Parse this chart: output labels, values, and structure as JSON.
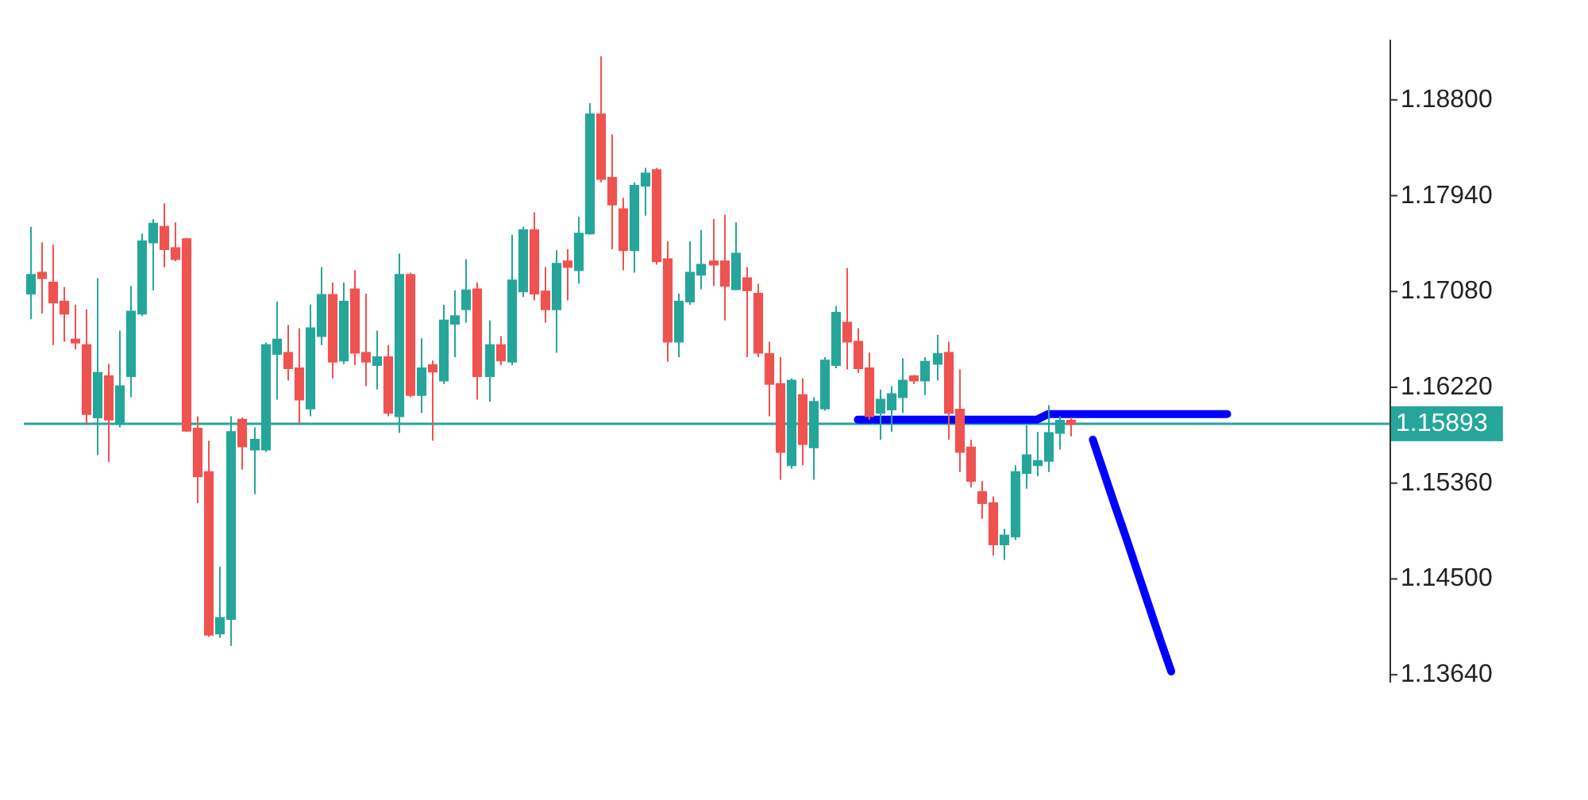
{
  "chart_data": {
    "type": "candlestick",
    "categories": [
      null,
      null,
      null,
      null,
      null,
      null,
      null,
      null,
      null,
      null,
      null,
      null,
      null,
      null,
      null,
      null,
      null,
      null,
      null,
      null,
      null,
      null,
      null,
      null,
      null,
      null,
      null,
      null,
      null,
      null,
      null,
      null,
      null,
      null,
      null,
      null,
      null,
      null,
      null,
      null,
      null,
      null,
      null,
      null,
      null,
      null,
      null,
      null,
      null,
      null,
      null,
      null,
      null,
      null,
      null,
      null,
      null,
      null,
      null,
      null,
      null,
      null,
      null,
      null,
      null,
      null,
      null,
      null,
      null,
      null,
      null,
      null,
      null,
      null,
      null,
      null,
      null,
      null,
      null,
      null,
      null,
      null,
      null,
      null,
      null,
      null,
      null,
      null,
      null,
      null,
      null,
      null,
      null,
      null,
      null,
      null,
      null,
      null,
      null,
      null,
      null,
      null,
      null,
      null,
      null,
      null,
      null,
      null,
      null,
      null,
      null,
      null,
      null,
      null,
      null,
      null,
      null,
      null,
      null,
      null,
      null,
      null
    ],
    "ohlc": [
      [
        1.1706,
        1.1766,
        1.1683,
        1.1723
      ],
      [
        1.1725,
        1.1752,
        1.1688,
        1.172
      ],
      [
        1.1716,
        1.175,
        1.166,
        1.1698
      ],
      [
        1.1699,
        1.1712,
        1.1663,
        1.1688
      ],
      [
        1.1665,
        1.1696,
        1.1656,
        1.1662
      ],
      [
        1.166,
        1.1692,
        1.1589,
        1.1598
      ],
      [
        1.1595,
        1.172,
        1.1561,
        1.1635
      ],
      [
        1.1632,
        1.1643,
        1.1555,
        1.1593
      ],
      [
        1.1589,
        1.1673,
        1.1586,
        1.1623
      ],
      [
        1.1632,
        1.1713,
        1.1613,
        1.169
      ],
      [
        1.1688,
        1.176,
        1.1686,
        1.1753
      ],
      [
        1.1752,
        1.1773,
        1.1709,
        1.1769
      ],
      [
        1.1766,
        1.1787,
        1.173,
        1.1746
      ],
      [
        1.1747,
        1.177,
        1.1735,
        1.1737
      ],
      [
        1.1755,
        1.1756,
        1.1582,
        1.1583
      ],
      [
        1.1585,
        1.1596,
        1.1518,
        1.1542
      ],
      [
        1.1546,
        1.1574,
        1.1398,
        1.14
      ],
      [
        1.1401,
        1.1461,
        1.1397,
        1.1415
      ],
      [
        1.1414,
        1.1596,
        1.139,
        1.1582
      ],
      [
        1.1593,
        1.1595,
        1.1548,
        1.1569
      ],
      [
        1.1566,
        1.1586,
        1.1526,
        1.1575
      ],
      [
        1.1566,
        1.1662,
        1.1564,
        1.166
      ],
      [
        1.1652,
        1.1699,
        1.1611,
        1.1665
      ],
      [
        1.1653,
        1.1678,
        1.1628,
        1.1639
      ],
      [
        1.1639,
        1.1675,
        1.1589,
        1.1611
      ],
      [
        1.1603,
        1.1696,
        1.1596,
        1.1675
      ],
      [
        1.1668,
        1.173,
        1.166,
        1.1705
      ],
      [
        1.1705,
        1.1716,
        1.163,
        1.1645
      ],
      [
        1.1646,
        1.1716,
        1.1643,
        1.1699
      ],
      [
        1.171,
        1.1727,
        1.1642,
        1.1653
      ],
      [
        1.1653,
        1.1706,
        1.1623,
        1.1645
      ],
      [
        1.1642,
        1.1673,
        1.162,
        1.1649
      ],
      [
        1.1649,
        1.166,
        1.1596,
        1.1599
      ],
      [
        1.1596,
        1.1742,
        1.1581,
        1.1723
      ],
      [
        1.1723,
        1.1725,
        1.1613,
        1.1615
      ],
      [
        1.1615,
        1.1666,
        1.1599,
        1.1639
      ],
      [
        1.1642,
        1.1646,
        1.1574,
        1.1636
      ],
      [
        1.1628,
        1.1696,
        1.1625,
        1.1682
      ],
      [
        1.1679,
        1.1709,
        1.1649,
        1.1686
      ],
      [
        1.1692,
        1.1737,
        1.168,
        1.1709
      ],
      [
        1.171,
        1.1716,
        1.1611,
        1.1632
      ],
      [
        1.1632,
        1.1682,
        1.1609,
        1.166
      ],
      [
        1.166,
        1.1668,
        1.1642,
        1.1646
      ],
      [
        1.1645,
        1.1759,
        1.1642,
        1.1718
      ],
      [
        1.1708,
        1.1766,
        1.1703,
        1.1763
      ],
      [
        1.1763,
        1.1779,
        1.17,
        1.1706
      ],
      [
        1.1708,
        1.173,
        1.168,
        1.1692
      ],
      [
        1.1692,
        1.1745,
        1.1653,
        1.1733
      ],
      [
        1.1735,
        1.1746,
        1.17,
        1.173
      ],
      [
        1.1727,
        1.1775,
        1.1715,
        1.176
      ],
      [
        1.176,
        1.1877,
        1.1759,
        1.1867
      ],
      [
        1.1867,
        1.1919,
        1.1806,
        1.1809
      ],
      [
        1.181,
        1.1849,
        1.1746,
        1.1786
      ],
      [
        1.1782,
        1.1792,
        1.1727,
        1.1745
      ],
      [
        1.1745,
        1.1806,
        1.1725,
        1.1803
      ],
      [
        1.1803,
        1.1819,
        1.1776,
        1.1814
      ],
      [
        1.1817,
        1.1819,
        1.1732,
        1.1735
      ],
      [
        1.1737,
        1.1753,
        1.1645,
        1.1663
      ],
      [
        1.1663,
        1.1706,
        1.1649,
        1.1699
      ],
      [
        1.1699,
        1.1753,
        1.1696,
        1.1725
      ],
      [
        1.1723,
        1.1763,
        1.171,
        1.1732
      ],
      [
        1.1735,
        1.1773,
        1.1713,
        1.1732
      ],
      [
        1.1735,
        1.1777,
        1.1682,
        1.1713
      ],
      [
        1.171,
        1.177,
        1.1709,
        1.1742
      ],
      [
        1.172,
        1.173,
        1.1649,
        1.1709
      ],
      [
        1.1706,
        1.1715,
        1.1649,
        1.1653
      ],
      [
        1.1652,
        1.1663,
        1.1596,
        1.1625
      ],
      [
        1.1625,
        1.1649,
        1.1539,
        1.1564
      ],
      [
        1.1552,
        1.163,
        1.1549,
        1.1628
      ],
      [
        1.1615,
        1.163,
        1.1552,
        1.1571
      ],
      [
        1.1568,
        1.1613,
        1.1539,
        1.1609
      ],
      [
        1.1603,
        1.1649,
        1.1601,
        1.1646
      ],
      [
        1.1642,
        1.1695,
        1.1639,
        1.1689
      ],
      [
        1.168,
        1.1729,
        1.1638,
        1.1663
      ],
      [
        1.1663,
        1.1675,
        1.1635,
        1.1639
      ],
      [
        1.1639,
        1.1653,
        1.1593,
        1.1596
      ],
      [
        1.1599,
        1.162,
        1.1575,
        1.1611
      ],
      [
        1.1602,
        1.1623,
        1.1582,
        1.1616
      ],
      [
        1.1613,
        1.1648,
        1.1599,
        1.1628
      ],
      [
        1.1632,
        1.1633,
        1.1625,
        1.1628
      ],
      [
        1.1628,
        1.1649,
        1.1615,
        1.1645
      ],
      [
        1.1643,
        1.1669,
        1.1628,
        1.1652
      ],
      [
        1.1653,
        1.1663,
        1.1575,
        1.1599
      ],
      [
        1.1602,
        1.1638,
        1.1546,
        1.1564
      ],
      [
        1.1568,
        1.1575,
        1.1532,
        1.1538
      ],
      [
        1.1528,
        1.1538,
        1.1504,
        1.1518
      ],
      [
        1.1518,
        1.1524,
        1.1471,
        1.1481
      ],
      [
        1.1481,
        1.1495,
        1.1467,
        1.1489
      ],
      [
        1.1488,
        1.1552,
        1.1485,
        1.1546
      ],
      [
        1.1545,
        1.1588,
        1.1531,
        1.1561
      ],
      [
        1.1552,
        1.1582,
        1.1542,
        1.1556
      ],
      [
        1.1556,
        1.1606,
        1.1546,
        1.1581
      ],
      [
        1.1581,
        1.1596,
        1.1566,
        1.1592
      ],
      [
        1.1592,
        1.1595,
        1.1578,
        1.1589
      ],
      null,
      null,
      null,
      null,
      null,
      null,
      null,
      null,
      null,
      null,
      null,
      null,
      null,
      null,
      null,
      null,
      null,
      null,
      null,
      null,
      null,
      null,
      null,
      null,
      null,
      null,
      null,
      null
    ],
    "colors": [
      "#26a69a",
      "#ef5350",
      "#ef5350",
      "#ef5350",
      "#ef5350",
      "#ef5350",
      "#26a69a",
      "#ef5350",
      "#26a69a",
      "#26a69a",
      "#26a69a",
      "#26a69a",
      "#ef5350",
      "#ef5350",
      "#ef5350",
      "#ef5350",
      "#ef5350",
      "#26a69a",
      "#26a69a",
      "#ef5350",
      "#26a69a",
      "#26a69a",
      "#26a69a",
      "#ef5350",
      "#ef5350",
      "#26a69a",
      "#26a69a",
      "#ef5350",
      "#26a69a",
      "#ef5350",
      "#ef5350",
      "#26a69a",
      "#ef5350",
      "#26a69a",
      "#ef5350",
      "#26a69a",
      "#ef5350",
      "#26a69a",
      "#26a69a",
      "#26a69a",
      "#ef5350",
      "#26a69a",
      "#ef5350",
      "#26a69a",
      "#26a69a",
      "#ef5350",
      "#ef5350",
      "#26a69a",
      "#ef5350",
      "#26a69a",
      "#26a69a",
      "#ef5350",
      "#ef5350",
      "#ef5350",
      "#26a69a",
      "#26a69a",
      "#ef5350",
      "#ef5350",
      "#26a69a",
      "#26a69a",
      "#26a69a",
      "#ef5350",
      "#ef5350",
      "#26a69a",
      "#ef5350",
      "#ef5350",
      "#ef5350",
      "#ef5350",
      "#26a69a",
      "#ef5350",
      "#26a69a",
      "#26a69a",
      "#26a69a",
      "#ef5350",
      "#ef5350",
      "#ef5350",
      "#26a69a",
      "#26a69a",
      "#26a69a",
      "#ef5350",
      "#26a69a",
      "#26a69a",
      "#ef5350",
      "#ef5350",
      "#ef5350",
      "#ef5350",
      "#ef5350",
      "#26a69a",
      "#26a69a",
      "#26a69a",
      "#26a69a",
      "#26a69a",
      "#26a69a",
      "#ef5350",
      null,
      null,
      null,
      null,
      null,
      null,
      null,
      null,
      null,
      null,
      null,
      null,
      null,
      null,
      null,
      null,
      null,
      null,
      null,
      null,
      null,
      null,
      null,
      null,
      null,
      null,
      null,
      null
    ],
    "series": [
      {
        "type": "line",
        "color": "#0000ff",
        "values": [
          null,
          null,
          null,
          null,
          null,
          null,
          null,
          null,
          null,
          null,
          null,
          null,
          null,
          null,
          null,
          null,
          null,
          null,
          null,
          null,
          null,
          null,
          null,
          null,
          null,
          null,
          null,
          null,
          null,
          null,
          null,
          null,
          null,
          null,
          null,
          null,
          null,
          null,
          null,
          null,
          null,
          null,
          null,
          null,
          null,
          null,
          null,
          null,
          null,
          null,
          null,
          null,
          null,
          null,
          null,
          null,
          null,
          null,
          null,
          null,
          null,
          null,
          null,
          null,
          null,
          null,
          null,
          null,
          null,
          null,
          null,
          null,
          null,
          null,
          1.1593,
          1.1593,
          1.1593,
          1.1593,
          1.1593,
          1.1593,
          1.1593,
          1.1593,
          1.1593,
          1.1593,
          1.1593,
          1.1593,
          1.1593,
          1.1593,
          1.1593,
          1.1593,
          1.1593,
          1.1598,
          1.1598,
          1.1598,
          1.1598,
          1.1598,
          1.1598,
          1.1598,
          1.1598,
          1.1598,
          1.1598,
          1.1598,
          1.1598,
          1.1598,
          1.1598,
          1.1598,
          1.1598,
          1.1598,
          null,
          null,
          null,
          null,
          null,
          null,
          null,
          null,
          null,
          null,
          null,
          null,
          null,
          null
        ]
      },
      {
        "type": "line",
        "color": "#0000ff",
        "values": [
          null,
          null,
          null,
          null,
          null,
          null,
          null,
          null,
          null,
          null,
          null,
          null,
          null,
          null,
          null,
          null,
          null,
          null,
          null,
          null,
          null,
          null,
          null,
          null,
          null,
          null,
          null,
          null,
          null,
          null,
          null,
          null,
          null,
          null,
          null,
          null,
          null,
          null,
          null,
          null,
          null,
          null,
          null,
          null,
          null,
          null,
          null,
          null,
          null,
          null,
          null,
          null,
          null,
          null,
          null,
          null,
          null,
          null,
          null,
          null,
          null,
          null,
          null,
          null,
          null,
          null,
          null,
          null,
          null,
          null,
          null,
          null,
          null,
          null,
          null,
          null,
          null,
          null,
          null,
          null,
          null,
          null,
          null,
          null,
          null,
          null,
          null,
          null,
          null,
          null,
          null,
          null,
          null,
          null,
          null,
          1.1575,
          1.1545,
          1.1515,
          1.1486,
          1.1456,
          1.1426,
          1.1396,
          1.1367,
          null,
          null,
          null,
          null,
          null,
          null,
          null,
          null,
          null,
          null,
          null,
          null,
          null,
          null,
          null,
          null,
          null,
          null,
          null
        ]
      }
    ],
    "ylim": [
      1.1357,
      1.1934
    ],
    "yticks": [
      {
        "value": 1.188,
        "label": "1.18800"
      },
      {
        "value": 1.1794,
        "label": "1.17940"
      },
      {
        "value": 1.1708,
        "label": "1.17080"
      },
      {
        "value": 1.1622,
        "label": "1.16220"
      },
      {
        "value": 1.1536,
        "label": "1.15360"
      },
      {
        "value": 1.145,
        "label": "1.14500"
      },
      {
        "value": 1.1364,
        "label": "1.13640"
      }
    ],
    "ref_lines": [
      {
        "axis": "y",
        "value": 1.15893,
        "label": "1.15893",
        "color": "#26a69a"
      }
    ]
  }
}
